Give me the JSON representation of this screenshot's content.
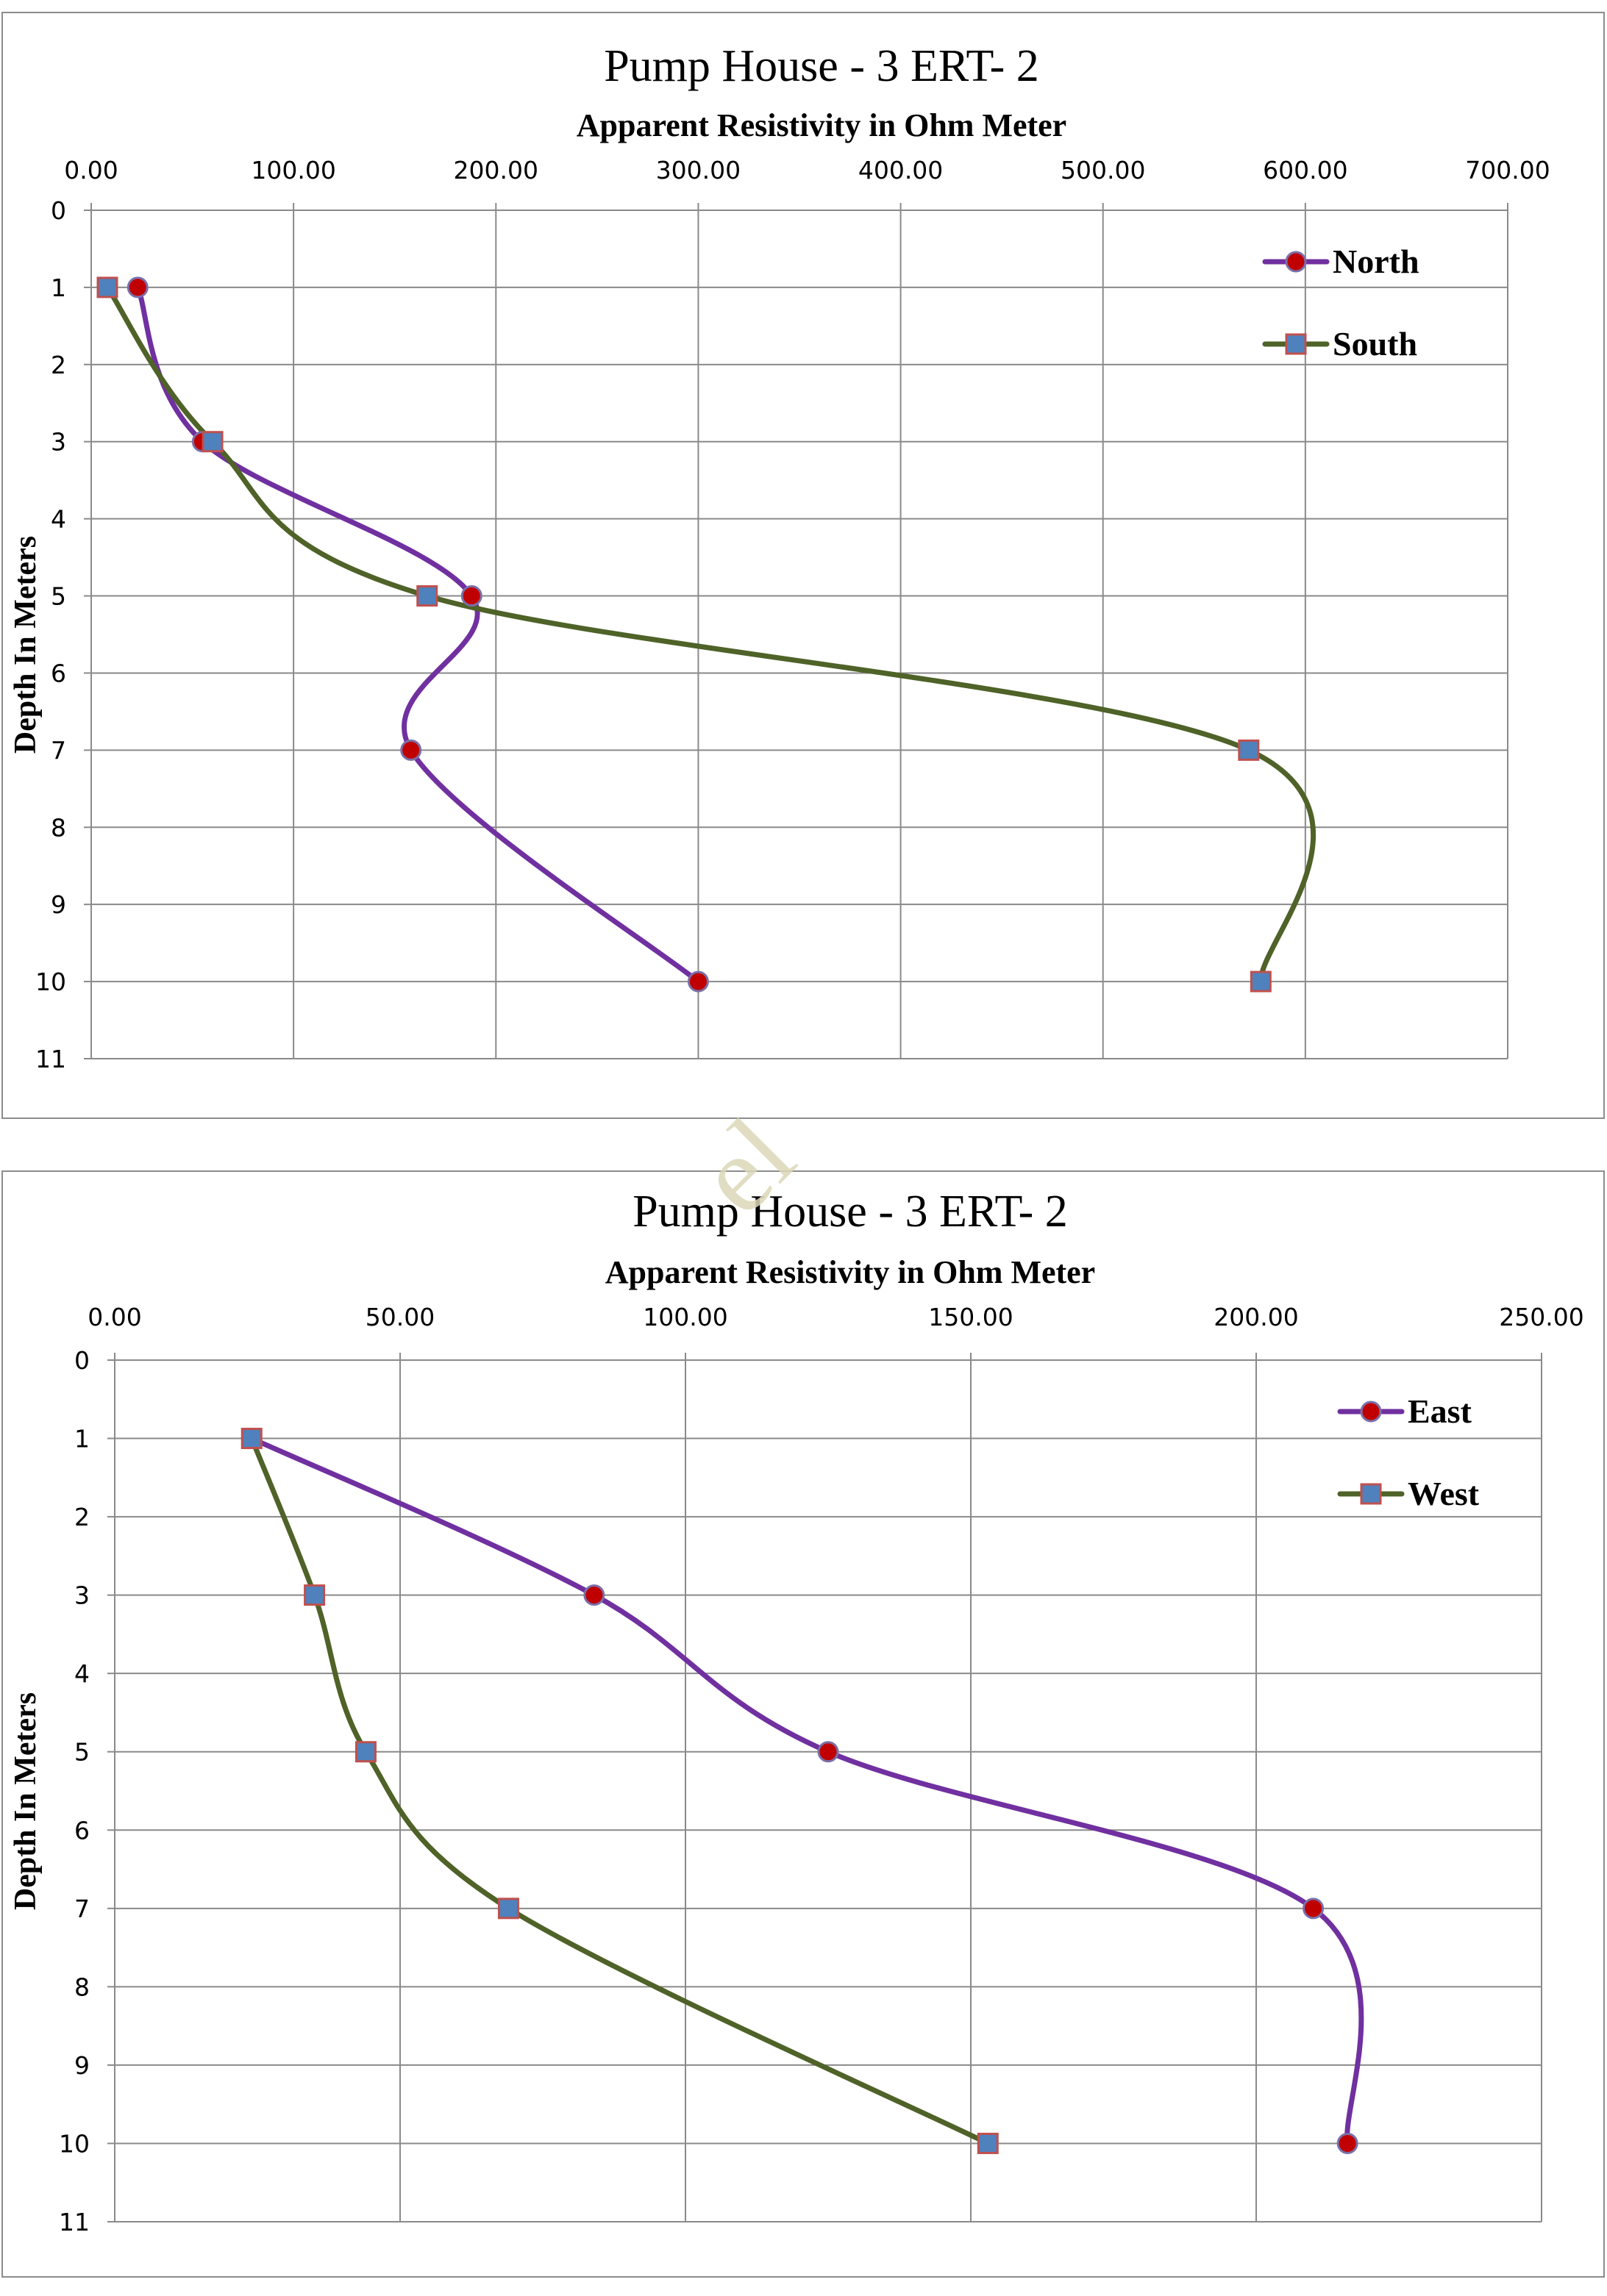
{
  "watermark": "el",
  "chart_data": [
    {
      "type": "line",
      "title": "Pump House - 3   ERT- 2",
      "xlabel": "Apparent Resistivity in Ohm Meter",
      "ylabel": "Depth In Meters",
      "xlim": [
        0,
        700
      ],
      "ylim": [
        11,
        0
      ],
      "x_ticks": [
        "0.00",
        "100.00",
        "200.00",
        "300.00",
        "400.00",
        "500.00",
        "600.00",
        "700.00"
      ],
      "y_ticks": [
        "0",
        "1",
        "2",
        "3",
        "4",
        "5",
        "6",
        "7",
        "8",
        "9",
        "10",
        "11"
      ],
      "grid": true,
      "legend_position": "top-right",
      "series": [
        {
          "name": "North",
          "color": "#7030a0",
          "marker": "circle",
          "marker_color": "#c00000",
          "points": [
            {
              "x": 23,
              "y": 1
            },
            {
              "x": 55,
              "y": 3
            },
            {
              "x": 188,
              "y": 5
            },
            {
              "x": 158,
              "y": 7
            },
            {
              "x": 300,
              "y": 10
            }
          ]
        },
        {
          "name": "South",
          "color": "#4f6228",
          "marker": "square",
          "marker_color": "#4f81bd",
          "points": [
            {
              "x": 8,
              "y": 1
            },
            {
              "x": 60,
              "y": 3
            },
            {
              "x": 166,
              "y": 5
            },
            {
              "x": 572,
              "y": 7
            },
            {
              "x": 578,
              "y": 10
            }
          ]
        }
      ]
    },
    {
      "type": "line",
      "title": "Pump House - 3   ERT- 2",
      "xlabel": "Apparent Resistivity in Ohm Meter",
      "ylabel": "Depth In Meters",
      "xlim": [
        0,
        250
      ],
      "ylim": [
        11,
        0
      ],
      "x_ticks": [
        "0.00",
        "50.00",
        "100.00",
        "150.00",
        "200.00",
        "250.00"
      ],
      "y_ticks": [
        "0",
        "1",
        "2",
        "3",
        "4",
        "5",
        "6",
        "7",
        "8",
        "9",
        "10",
        "11"
      ],
      "grid": true,
      "legend_position": "top-right",
      "series": [
        {
          "name": "East",
          "color": "#7030a0",
          "marker": "circle",
          "marker_color": "#c00000",
          "points": [
            {
              "x": 24,
              "y": 1
            },
            {
              "x": 84,
              "y": 3
            },
            {
              "x": 125,
              "y": 5
            },
            {
              "x": 210,
              "y": 7
            },
            {
              "x": 216,
              "y": 10
            }
          ]
        },
        {
          "name": "West",
          "color": "#4f6228",
          "marker": "square",
          "marker_color": "#4f81bd",
          "points": [
            {
              "x": 24,
              "y": 1
            },
            {
              "x": 35,
              "y": 3
            },
            {
              "x": 44,
              "y": 5
            },
            {
              "x": 69,
              "y": 7
            },
            {
              "x": 153,
              "y": 10
            }
          ]
        }
      ]
    }
  ]
}
